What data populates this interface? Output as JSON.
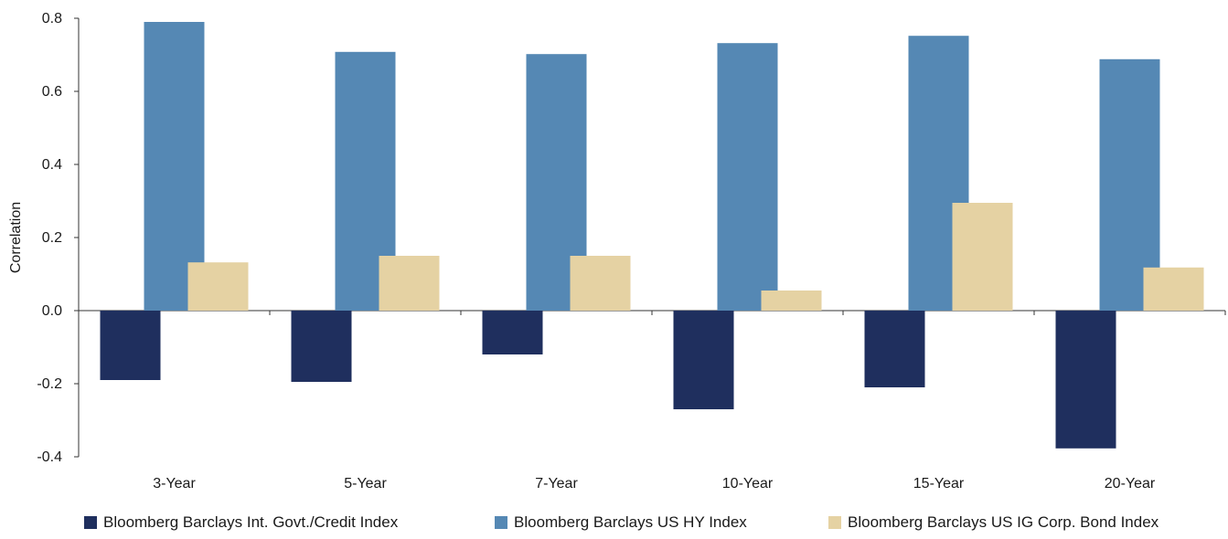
{
  "chart_data": {
    "type": "bar",
    "ylabel": "Correlation",
    "ylim": [
      -0.4,
      0.8
    ],
    "yticks": [
      "0.8",
      "0.6",
      "0.4",
      "0.2",
      "0.0",
      "-0.2",
      "-0.4"
    ],
    "ytick_values": [
      0.8,
      0.6,
      0.4,
      0.2,
      0.0,
      -0.2,
      -0.4
    ],
    "categories": [
      "3-Year",
      "5-Year",
      "7-Year",
      "10-Year",
      "15-Year",
      "20-Year"
    ],
    "series": [
      {
        "name": "Bloomberg Barclays Int. Govt./Credit Index",
        "color": "#1f2f5e",
        "values": [
          -0.19,
          -0.195,
          -0.12,
          -0.27,
          -0.21,
          -0.377
        ]
      },
      {
        "name": "Bloomberg Barclays US HY Index",
        "color": "#5588b4",
        "values": [
          0.79,
          0.708,
          0.702,
          0.732,
          0.752,
          0.688
        ]
      },
      {
        "name": "Bloomberg Barclays US IG Corp. Bond Index",
        "color": "#e5d2a3",
        "values": [
          0.132,
          0.15,
          0.15,
          0.055,
          0.295,
          0.118
        ]
      }
    ],
    "legend_position": "bottom",
    "grid": false
  }
}
